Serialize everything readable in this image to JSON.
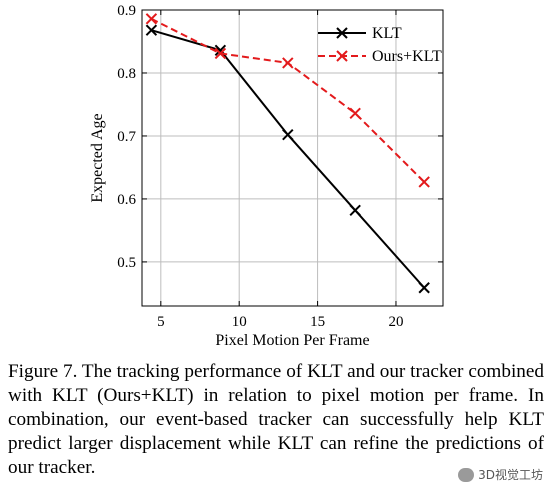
{
  "chart_data": {
    "type": "line",
    "xlabel": "Pixel Motion Per Frame",
    "ylabel": "Expected Age",
    "xlim": [
      3.8,
      23.0
    ],
    "ylim": [
      0.43,
      0.9
    ],
    "xticks": [
      5,
      10,
      15,
      20
    ],
    "yticks": [
      0.5,
      0.6,
      0.7,
      0.8,
      0.9
    ],
    "xtick_labels": [
      "5",
      "10",
      "15",
      "20"
    ],
    "ytick_labels": [
      "0.5",
      "0.6",
      "0.7",
      "0.8",
      "0.9"
    ],
    "grid": true,
    "legend_position": "top-right",
    "series": [
      {
        "name": "KLT",
        "color": "#000000",
        "line_style": "solid",
        "marker": "x",
        "x": [
          4.4,
          8.8,
          13.1,
          17.4,
          21.8
        ],
        "y": [
          0.868,
          0.836,
          0.702,
          0.582,
          0.459
        ]
      },
      {
        "name": "Ours+KLT",
        "color": "#e31a1c",
        "line_style": "dashed",
        "marker": "x",
        "x": [
          4.4,
          8.8,
          13.1,
          17.4,
          21.8
        ],
        "y": [
          0.886,
          0.831,
          0.816,
          0.736,
          0.627
        ]
      }
    ]
  },
  "caption": "Figure 7. The tracking performance of KLT and our tracker combined with KLT (Ours+KLT) in relation to pixel motion per frame. In combination, our event-based tracker can successfully help KLT predict larger displacement while KLT can refine the predictions of our tracker.",
  "watermark": "3D视觉工坊"
}
